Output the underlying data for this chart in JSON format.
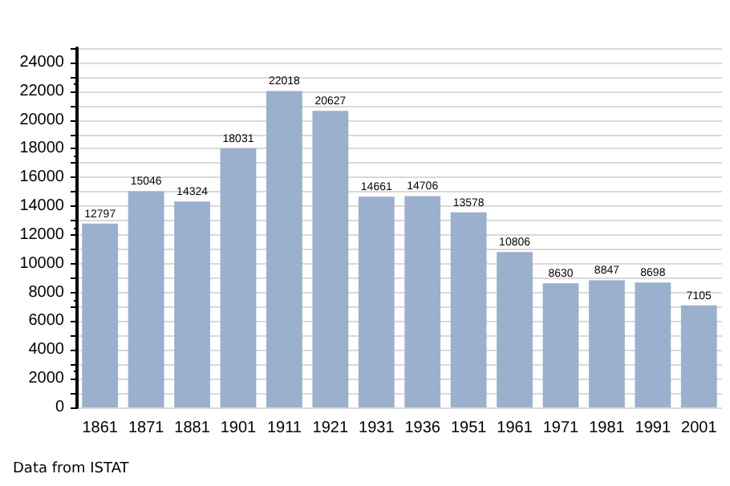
{
  "chart_data": {
    "type": "bar",
    "categories": [
      "1861",
      "1871",
      "1881",
      "1901",
      "1911",
      "1921",
      "1931",
      "1936",
      "1951",
      "1961",
      "1971",
      "1981",
      "1991",
      "2001"
    ],
    "values": [
      12797,
      15046,
      14324,
      18031,
      22018,
      20627,
      14661,
      14706,
      13578,
      10806,
      8630,
      8847,
      8698,
      7105
    ],
    "color": "#9ab0cc",
    "data_labels": true,
    "grid": "y",
    "ylim": [
      0,
      25000
    ],
    "yticks": [
      0,
      {
        "value": 1000,
        "label": null
      },
      2000,
      {
        "value": 3000,
        "label": null
      },
      4000,
      {
        "value": 5000,
        "label": null
      },
      6000,
      {
        "value": 7000,
        "label": null
      },
      8000,
      {
        "value": 9000,
        "label": null
      },
      10000,
      {
        "value": 11000,
        "label": null
      },
      12000,
      {
        "value": 13000,
        "label": null
      },
      14000,
      {
        "value": 15000,
        "label": null
      },
      16000,
      {
        "value": 17000,
        "label": null
      },
      18000,
      {
        "value": 19000,
        "label": null
      },
      20000,
      {
        "value": 21000,
        "label": null
      },
      22000,
      {
        "value": 23000,
        "label": null
      },
      24000,
      {
        "value": 25000,
        "label": null
      }
    ],
    "annotations": [
      "Data from ISTAT"
    ]
  }
}
